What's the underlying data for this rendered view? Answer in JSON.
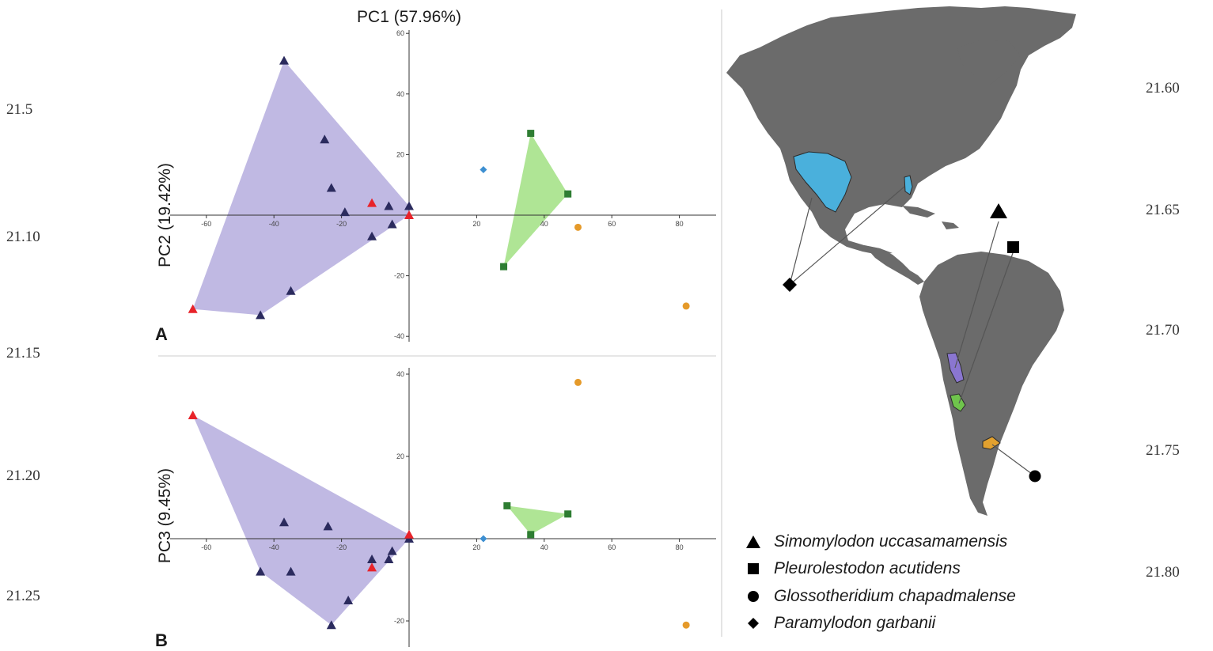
{
  "line_numbers_left": [
    "21.5",
    "21.10",
    "21.15",
    "21.20",
    "21.25"
  ],
  "line_numbers_right": [
    "21.60",
    "21.65",
    "21.70",
    "21.75",
    "21.80"
  ],
  "colors": {
    "simomylodon_hull": "#b9b1e0",
    "pleurolestodon_hull": "#a6e28a",
    "navy_triangle": "#2b2b5e",
    "red_triangle": "#e8232a",
    "green_square": "#2e7d32",
    "orange_circle": "#e59a2a",
    "blue_diamond": "#3d8fd1",
    "land": "#6b6b6b",
    "blue_range": "#4ab0dc",
    "purple_range": "#8a76d0",
    "green_range": "#6fc44c",
    "orange_range": "#e2a12f"
  },
  "panel_a": {
    "letter": "A",
    "title": "PC1 (57.96%)",
    "y_label": "PC2 (19.42%)",
    "x_ticks": [
      "-60",
      "-40",
      "-20",
      "20",
      "40",
      "60",
      "80"
    ],
    "y_ticks": [
      "60",
      "40",
      "20",
      "-20",
      "-40"
    ]
  },
  "panel_b": {
    "letter": "B",
    "y_label": "PC3 (9.45%)",
    "x_ticks": [
      "-60",
      "-40",
      "-20",
      "20",
      "40",
      "60",
      "80"
    ],
    "y_ticks": [
      "40",
      "20",
      "-20"
    ]
  },
  "chart_data": [
    {
      "type": "scatter",
      "panel": "A",
      "title": "PC1 (57.96%)",
      "xlabel": "PC1 (57.96%)",
      "ylabel": "PC2 (19.42%)",
      "xlim": [
        -70,
        90
      ],
      "ylim": [
        -42,
        62
      ],
      "series": [
        {
          "marker": "triangle",
          "color": "#2b2b5e",
          "x": [
            -37,
            -25,
            -23,
            -19,
            -6,
            -5,
            0,
            -11,
            -35,
            -44
          ],
          "y": [
            51,
            25,
            9,
            1,
            3,
            -3,
            3,
            -7,
            -25,
            -33
          ]
        },
        {
          "marker": "triangle",
          "color": "#e8232a",
          "x": [
            -11,
            0,
            -64
          ],
          "y": [
            4,
            0,
            -31
          ]
        },
        {
          "marker": "square",
          "color": "#2e7d32",
          "x": [
            36,
            47,
            28
          ],
          "y": [
            27,
            7,
            -17
          ]
        },
        {
          "marker": "circle",
          "color": "#e59a2a",
          "x": [
            50,
            82
          ],
          "y": [
            -4,
            -30
          ]
        },
        {
          "marker": "diamond",
          "color": "#3d8fd1",
          "x": [
            22
          ],
          "y": [
            15
          ]
        }
      ]
    },
    {
      "type": "scatter",
      "panel": "B",
      "xlabel": "PC1 (57.96%)",
      "ylabel": "PC3 (9.45%)",
      "xlim": [
        -70,
        90
      ],
      "ylim": [
        -24,
        42
      ],
      "series": [
        {
          "marker": "triangle",
          "color": "#2b2b5e",
          "x": [
            -37,
            -24,
            -44,
            -35,
            -11,
            -6,
            -5,
            0,
            -18,
            -23
          ],
          "y": [
            4,
            3,
            -8,
            -8,
            -5,
            -5,
            -3,
            0,
            -15,
            -21
          ]
        },
        {
          "marker": "triangle",
          "color": "#e8232a",
          "x": [
            -64,
            0,
            -11
          ],
          "y": [
            30,
            1,
            -7
          ]
        },
        {
          "marker": "square",
          "color": "#2e7d32",
          "x": [
            29,
            47,
            36
          ],
          "y": [
            8,
            6,
            1
          ]
        },
        {
          "marker": "circle",
          "color": "#e59a2a",
          "x": [
            50,
            82
          ],
          "y": [
            38,
            -21
          ]
        },
        {
          "marker": "diamond",
          "color": "#3d8fd1",
          "x": [
            22
          ],
          "y": [
            0
          ]
        }
      ]
    }
  ],
  "legend": [
    {
      "marker": "triangle",
      "label": "Simomylodon uccasamamensis"
    },
    {
      "marker": "square",
      "label": "Pleurolestodon acutidens"
    },
    {
      "marker": "circle",
      "label": "Glossotheridium chapadmalense"
    },
    {
      "marker": "diamond",
      "label": "Paramylodon garbanii"
    }
  ]
}
